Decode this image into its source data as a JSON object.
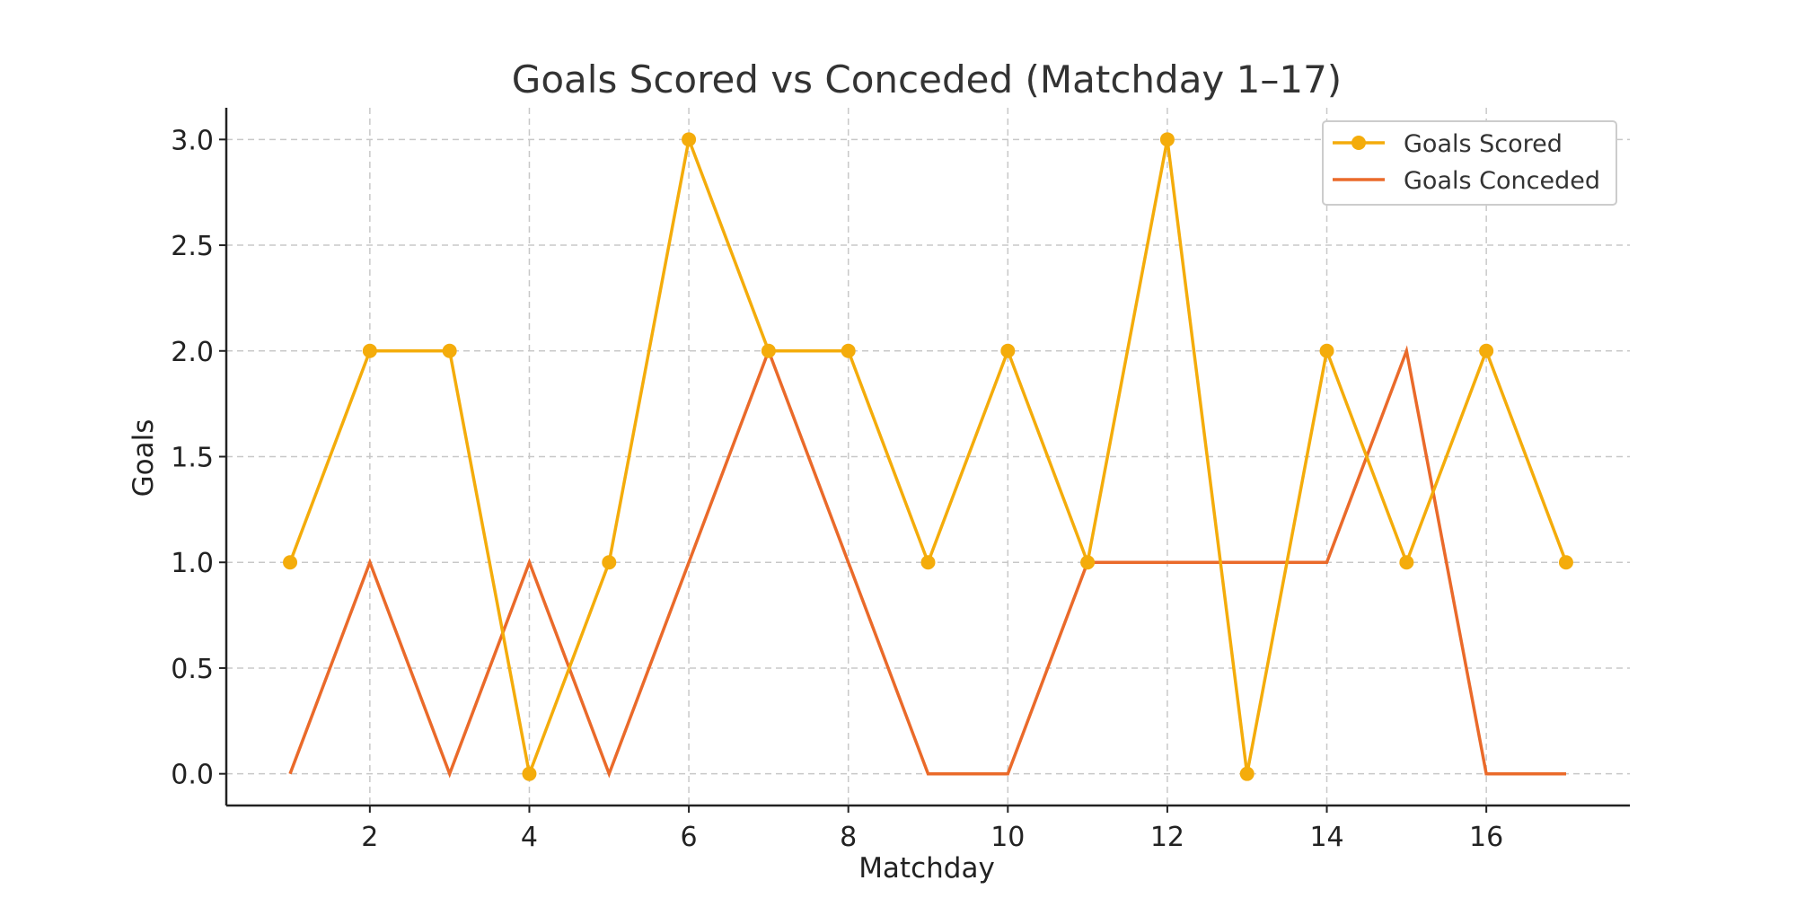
{
  "chart_data": {
    "type": "line",
    "title": "Goals Scored vs Conceded (Matchday 1–17)",
    "xlabel": "Matchday",
    "ylabel": "Goals",
    "x": [
      1,
      2,
      3,
      4,
      5,
      6,
      7,
      8,
      9,
      10,
      11,
      12,
      13,
      14,
      15,
      16,
      17
    ],
    "xlim": [
      0.2,
      17.8
    ],
    "ylim": [
      -0.15,
      3.15
    ],
    "xticks": [
      2,
      4,
      6,
      8,
      10,
      12,
      14,
      16
    ],
    "xtick_labels": [
      "2",
      "4",
      "6",
      "8",
      "10",
      "12",
      "14",
      "16"
    ],
    "yticks": [
      0,
      0.5,
      1,
      1.5,
      2,
      2.5,
      3
    ],
    "ytick_labels": [
      "0.0",
      "0.5",
      "1.0",
      "1.5",
      "2.0",
      "2.5",
      "3.0"
    ],
    "grid": true,
    "legend_position": "top-right",
    "series": [
      {
        "name": "Goals Scored",
        "color": "#f4ac0b",
        "marker": "circle",
        "values": [
          1,
          2,
          2,
          0,
          1,
          3,
          2,
          2,
          1,
          2,
          1,
          3,
          0,
          2,
          1,
          2,
          1
        ]
      },
      {
        "name": "Goals Conceded",
        "color": "#ea6a2a",
        "marker": "none",
        "values": [
          0,
          1,
          0,
          1,
          0,
          1,
          2,
          1,
          0,
          0,
          1,
          1,
          1,
          1,
          2,
          0,
          0
        ]
      }
    ]
  }
}
